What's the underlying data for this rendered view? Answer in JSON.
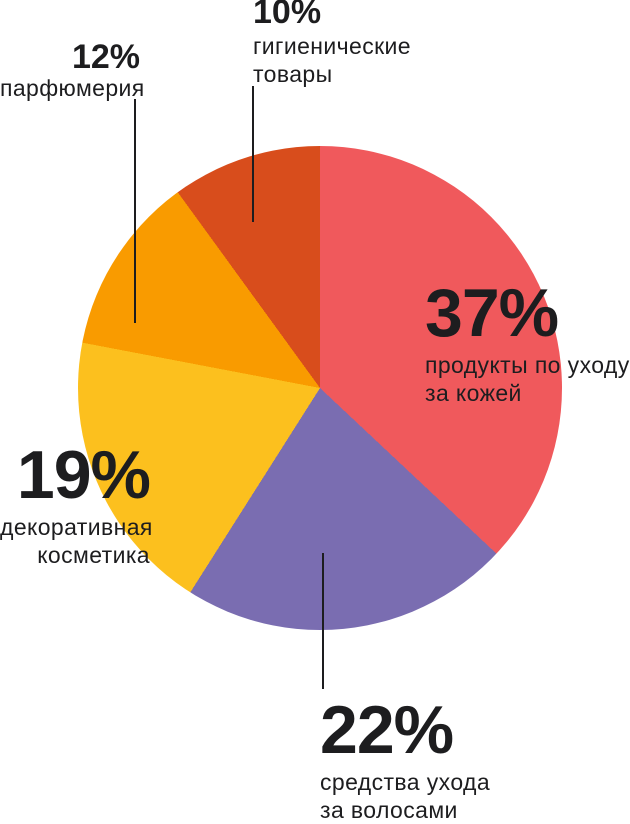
{
  "chart_data": {
    "type": "pie",
    "title": "",
    "direction": "clockwise",
    "start_angle_deg": 0,
    "legend_position": "none",
    "slices": [
      {
        "label": "продукты по уходу за кожей",
        "value": 37,
        "color": "#F0595C"
      },
      {
        "label": "средства ухода за волосами",
        "value": 22,
        "color": "#7A6DB1"
      },
      {
        "label": "декоративная косметика",
        "value": 19,
        "color": "#FCC01E"
      },
      {
        "label": "парфюмерия",
        "value": 12,
        "color": "#F99B00"
      },
      {
        "label": "гигиенические товары",
        "value": 10,
        "color": "#D84D1C"
      }
    ]
  },
  "callouts": {
    "hygiene": {
      "pct": "10%",
      "lines": [
        "гигиенические",
        "товары"
      ]
    },
    "perfume": {
      "pct": "12%",
      "lines": [
        "парфюмерия"
      ]
    },
    "skin": {
      "pct": "37%",
      "lines": [
        "продукты по уходу",
        "за кожей"
      ]
    },
    "decor": {
      "pct": "19%",
      "lines": [
        "декоративная",
        "косметика"
      ]
    },
    "hair": {
      "pct": "22%",
      "lines": [
        "средства ухода",
        "за волосами"
      ]
    }
  },
  "colors": {
    "text": "#1D1D1F",
    "leader_line": "#1D1D1F",
    "background": "#FFFFFF"
  }
}
